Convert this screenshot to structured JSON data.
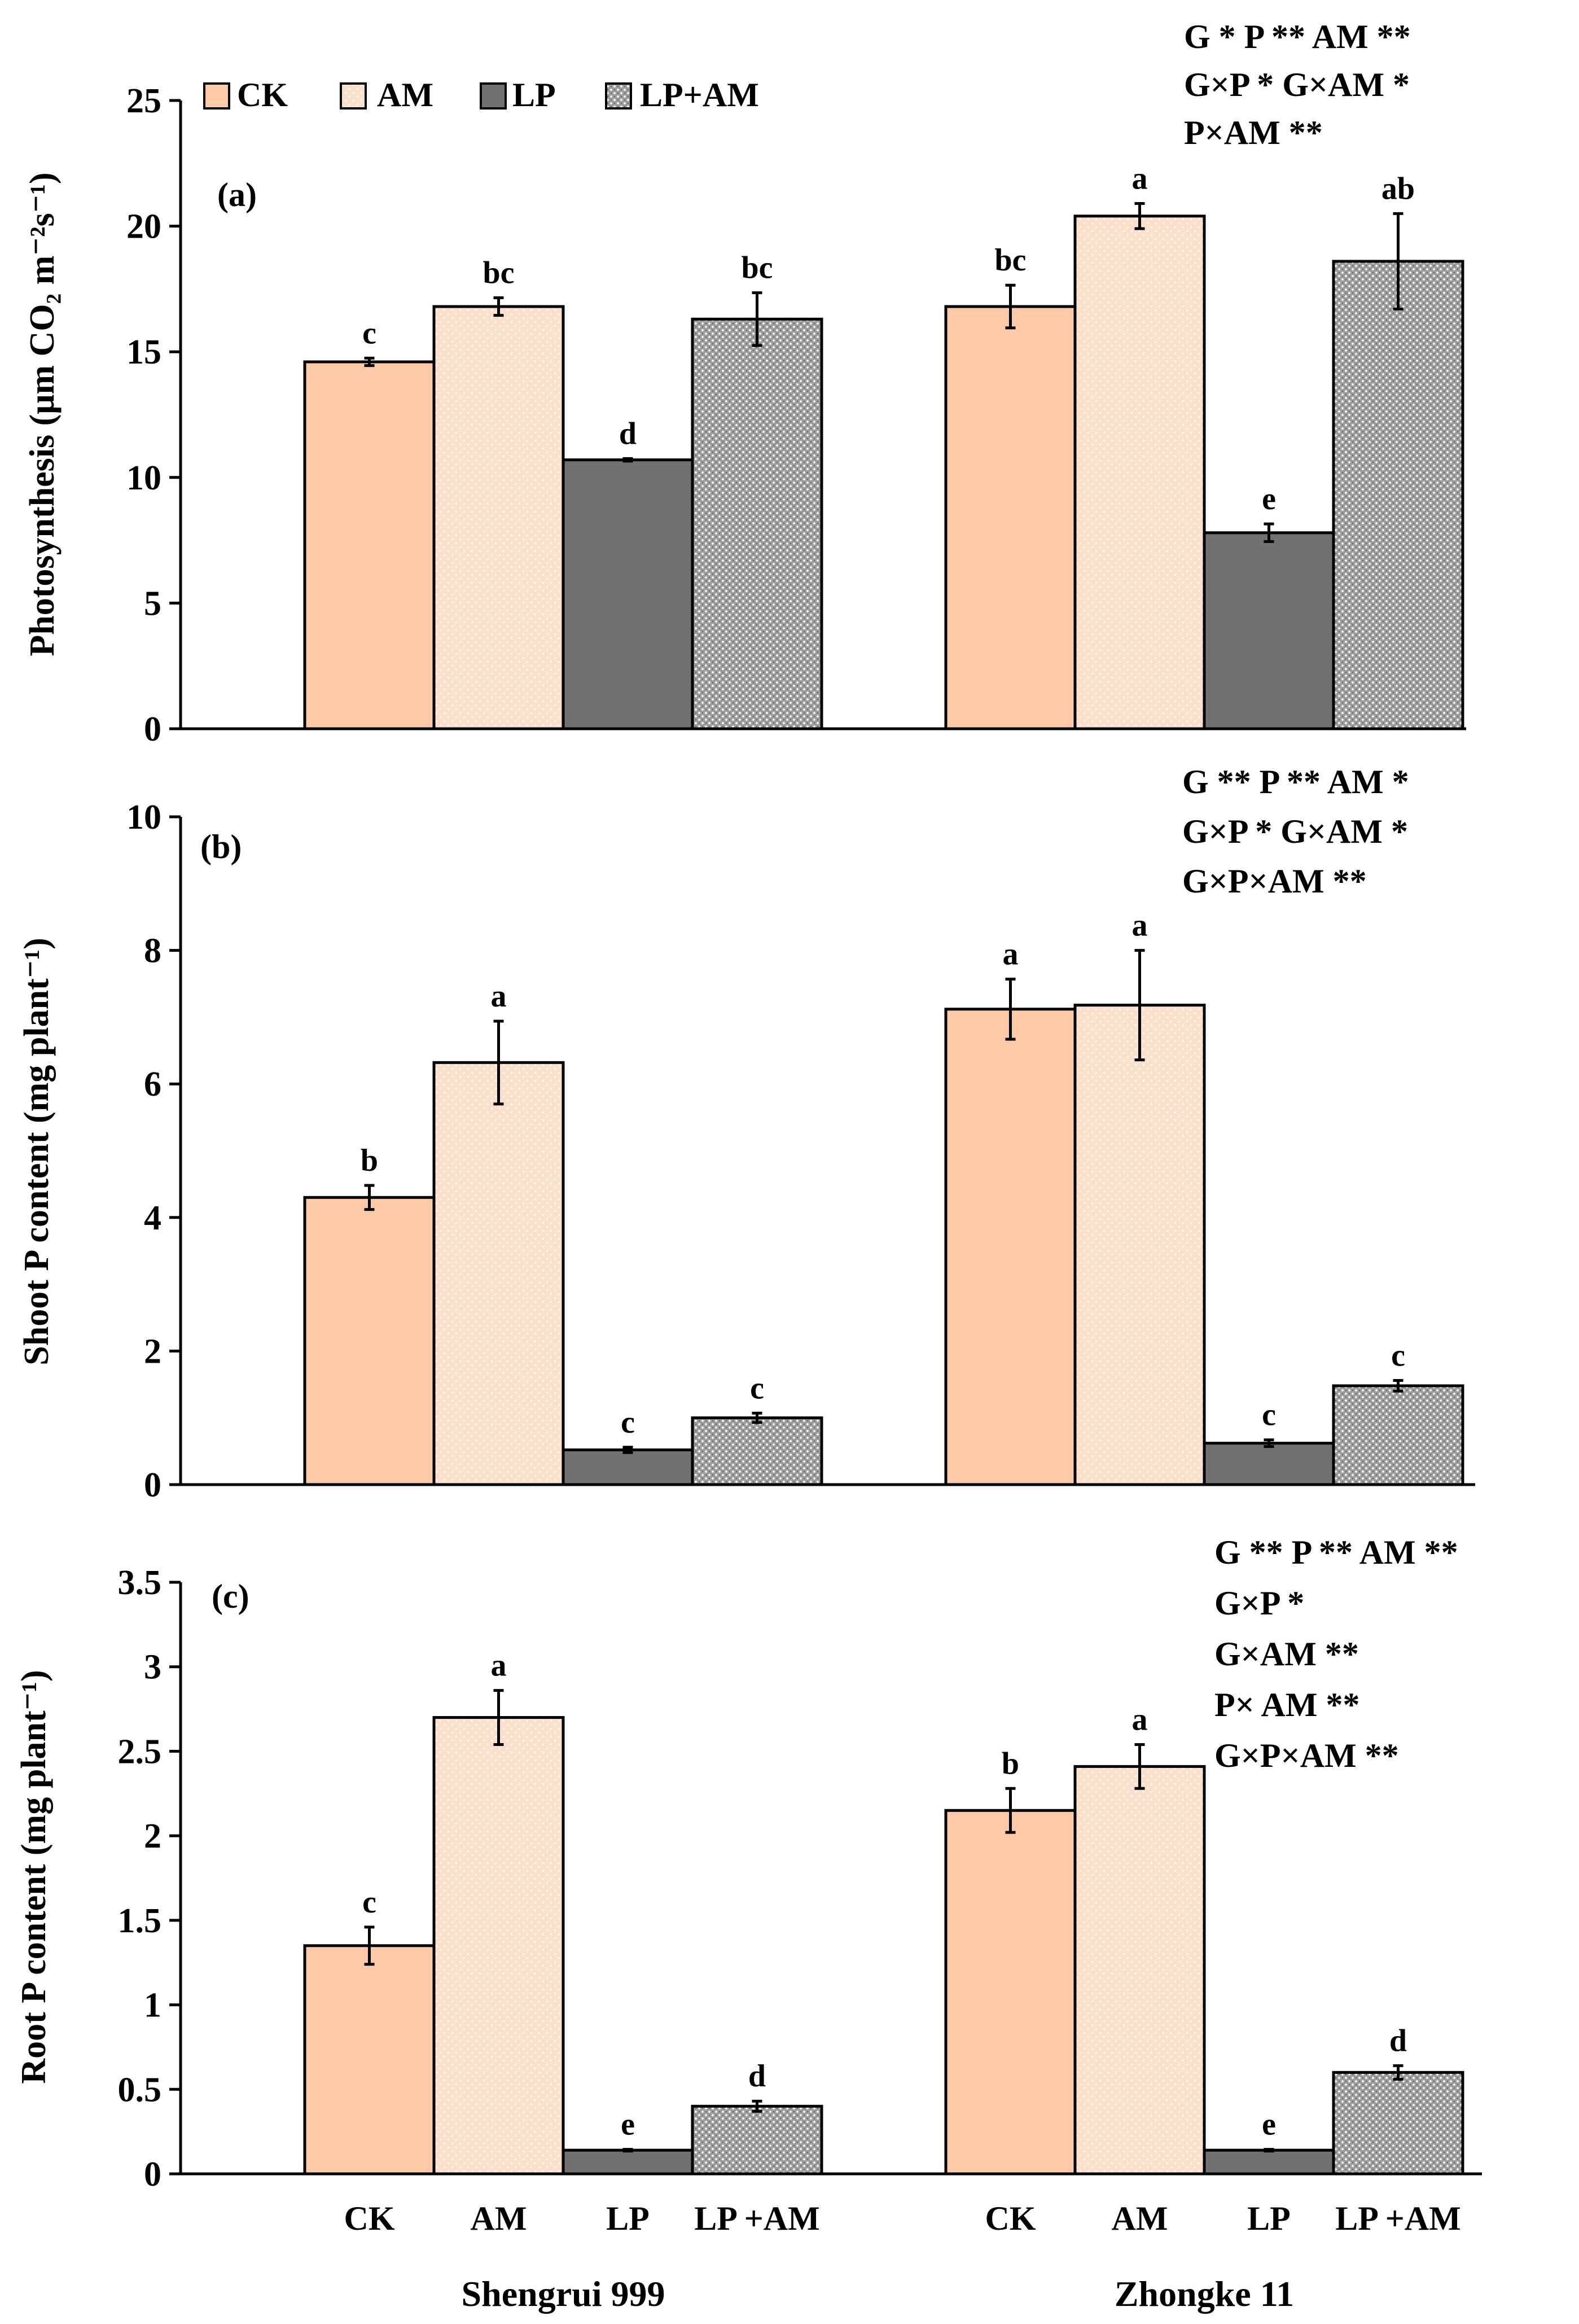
{
  "colors": {
    "CK": "#fccaa6",
    "AM": "#fde0cc",
    "LP": "#737070",
    "LP+AM": "#b9b6b6",
    "axis": "#000000"
  },
  "legend": {
    "items": [
      {
        "key": "CK",
        "label": "CK"
      },
      {
        "key": "AM",
        "label": "AM"
      },
      {
        "key": "LP",
        "label": "LP"
      },
      {
        "key": "LP+AM",
        "label": "LP+AM"
      }
    ]
  },
  "x_axis": {
    "category_labels": [
      "CK",
      "AM",
      "LP",
      "LP +AM"
    ],
    "group_labels": [
      "Shengrui 999",
      "Zhongke 11"
    ]
  },
  "chart_data": [
    {
      "type": "bar",
      "panel": "(a)",
      "ylabel": "Photosynthesis (μm CO₂ m⁻²s⁻¹)",
      "ylim": [
        0,
        25
      ],
      "yticks": [
        "0",
        "5",
        "10",
        "15",
        "20",
        "25"
      ],
      "groups": [
        "Shengrui 999",
        "Zhongke 11"
      ],
      "series": [
        {
          "name": "CK",
          "values": [
            14.6,
            16.8
          ],
          "errors": [
            0.15,
            0.85
          ],
          "letters": [
            "c",
            "bc"
          ]
        },
        {
          "name": "AM",
          "values": [
            16.8,
            20.4
          ],
          "errors": [
            0.35,
            0.5
          ],
          "letters": [
            "bc",
            "a"
          ]
        },
        {
          "name": "LP",
          "values": [
            10.7,
            7.8
          ],
          "errors": [
            0.05,
            0.35
          ],
          "letters": [
            "d",
            "e"
          ]
        },
        {
          "name": "LP+AM",
          "values": [
            16.3,
            18.6
          ],
          "errors": [
            1.05,
            1.9
          ],
          "letters": [
            "bc",
            "ab"
          ]
        }
      ],
      "stats": [
        "G *  P ** AM **",
        "G×P * G×AM *",
        "P×AM **"
      ]
    },
    {
      "type": "bar",
      "panel": "(b)",
      "ylabel": "Shoot P content (mg plant⁻¹)",
      "ylim": [
        0,
        10
      ],
      "yticks": [
        "0",
        "2",
        "4",
        "6",
        "8",
        "10"
      ],
      "groups": [
        "Shengrui 999",
        "Zhongke 11"
      ],
      "series": [
        {
          "name": "CK",
          "values": [
            4.3,
            7.12
          ],
          "errors": [
            0.18,
            0.45
          ],
          "letters": [
            "b",
            "a"
          ]
        },
        {
          "name": "AM",
          "values": [
            6.32,
            7.18
          ],
          "errors": [
            0.62,
            0.82
          ],
          "letters": [
            "a",
            "a"
          ]
        },
        {
          "name": "LP",
          "values": [
            0.52,
            0.62
          ],
          "errors": [
            0.04,
            0.05
          ],
          "letters": [
            "c",
            "c"
          ]
        },
        {
          "name": "LP+AM",
          "values": [
            1.0,
            1.48
          ],
          "errors": [
            0.07,
            0.08
          ],
          "letters": [
            "c",
            "c"
          ]
        }
      ],
      "stats": [
        "G **  P **  AM *",
        "G×P * G×AM *",
        "G×P×AM **"
      ]
    },
    {
      "type": "bar",
      "panel": "(c)",
      "ylabel": "Root P content (mg plant⁻¹)",
      "ylim": [
        0,
        3.5
      ],
      "yticks": [
        "0",
        "0.5",
        "1",
        "1.5",
        "2",
        "2.5",
        "3",
        "3.5"
      ],
      "groups": [
        "Shengrui 999",
        "Zhongke 11"
      ],
      "series": [
        {
          "name": "CK",
          "values": [
            1.35,
            2.15
          ],
          "errors": [
            0.11,
            0.13
          ],
          "letters": [
            "c",
            "b"
          ]
        },
        {
          "name": "AM",
          "values": [
            2.7,
            2.41
          ],
          "errors": [
            0.16,
            0.13
          ],
          "letters": [
            "a",
            "a"
          ]
        },
        {
          "name": "LP",
          "values": [
            0.14,
            0.14
          ],
          "errors": [
            0.005,
            0.005
          ],
          "letters": [
            "e",
            "e"
          ]
        },
        {
          "name": "LP+AM",
          "values": [
            0.4,
            0.6
          ],
          "errors": [
            0.03,
            0.04
          ],
          "letters": [
            "d",
            "d"
          ]
        }
      ],
      "stats": [
        "G **  P **  AM **",
        "G×P *",
        "G×AM **",
        "P× AM **",
        "G×P×AM **"
      ]
    }
  ]
}
